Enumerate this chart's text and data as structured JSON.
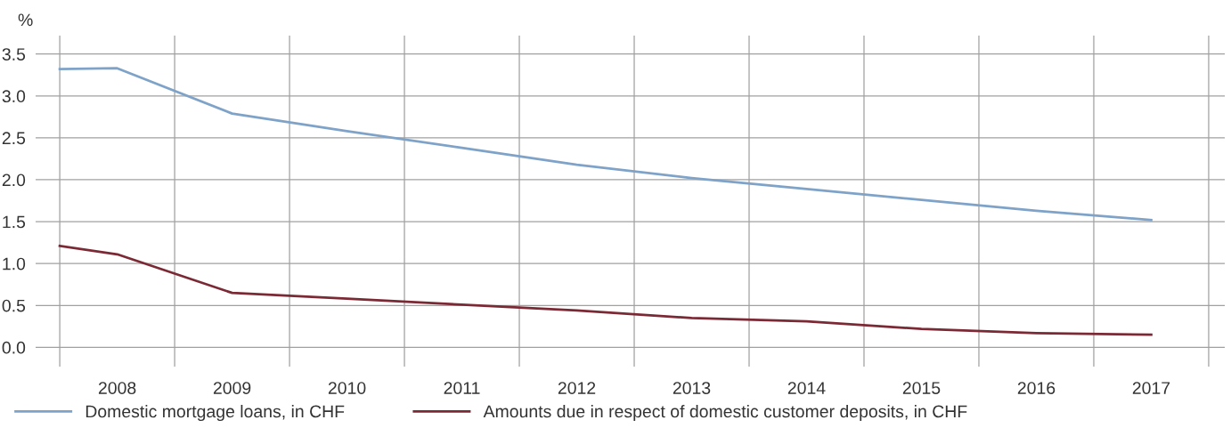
{
  "chart_data": {
    "type": "line",
    "ylabel": "%",
    "x": [
      2007.5,
      2008,
      2009,
      2010,
      2011,
      2012,
      2013,
      2014,
      2015,
      2016,
      2017
    ],
    "series": [
      {
        "name": "Domestic mortgage loans, in CHF",
        "color": "#7fa3c8",
        "values": [
          3.32,
          3.33,
          2.79,
          2.58,
          2.38,
          2.18,
          2.02,
          1.89,
          1.76,
          1.63,
          1.52
        ]
      },
      {
        "name": "Amounts due in respect of domestic customer deposits, in CHF",
        "color": "#7b2a35",
        "values": [
          1.21,
          1.11,
          0.65,
          0.58,
          0.51,
          0.44,
          0.35,
          0.31,
          0.22,
          0.17,
          0.15
        ]
      }
    ],
    "xlim": [
      2007.29,
      2017.64
    ],
    "xticks": [
      {
        "value": 2007.5,
        "label": null
      },
      {
        "value": 2008,
        "label": "2008"
      },
      {
        "value": 2008.5,
        "label": null
      },
      {
        "value": 2009,
        "label": "2009"
      },
      {
        "value": 2009.5,
        "label": null
      },
      {
        "value": 2010,
        "label": "2010"
      },
      {
        "value": 2010.5,
        "label": null
      },
      {
        "value": 2011,
        "label": "2011"
      },
      {
        "value": 2011.5,
        "label": null
      },
      {
        "value": 2012,
        "label": "2012"
      },
      {
        "value": 2012.5,
        "label": null
      },
      {
        "value": 2013,
        "label": "2013"
      },
      {
        "value": 2013.5,
        "label": null
      },
      {
        "value": 2014,
        "label": "2014"
      },
      {
        "value": 2014.5,
        "label": null
      },
      {
        "value": 2015,
        "label": "2015"
      },
      {
        "value": 2015.5,
        "label": null
      },
      {
        "value": 2016,
        "label": "2016"
      },
      {
        "value": 2016.5,
        "label": null
      },
      {
        "value": 2017,
        "label": "2017"
      },
      {
        "value": 2017.5,
        "label": null
      }
    ],
    "ylim": [
      -0.23,
      3.72
    ],
    "yticks": [
      {
        "value": 0,
        "label": "0.0"
      },
      {
        "value": 0.5,
        "label": "0.5"
      },
      {
        "value": 1,
        "label": "1.0"
      },
      {
        "value": 1.5,
        "label": "1.5"
      },
      {
        "value": 2,
        "label": "2.0"
      },
      {
        "value": 2.5,
        "label": "2.5"
      },
      {
        "value": 3,
        "label": "3.0"
      },
      {
        "value": 3.5,
        "label": "3.5"
      }
    ],
    "grid": true,
    "legend": "bottom",
    "marker": "none",
    "line_style": "solid"
  }
}
